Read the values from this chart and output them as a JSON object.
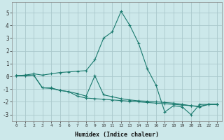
{
  "xlabel": "Humidex (Indice chaleur)",
  "bg_color": "#cce8ea",
  "grid_color": "#aac8cc",
  "line_color": "#1a7a6e",
  "xlim": [
    -0.5,
    23.5
  ],
  "ylim": [
    -3.5,
    5.8
  ],
  "xticks": [
    0,
    1,
    2,
    3,
    4,
    5,
    6,
    7,
    8,
    9,
    10,
    11,
    12,
    13,
    14,
    15,
    16,
    17,
    18,
    19,
    20,
    21,
    22,
    23
  ],
  "yticks": [
    -3,
    -2,
    -1,
    0,
    1,
    2,
    3,
    4,
    5
  ],
  "series": [
    {
      "x": [
        0,
        1,
        2,
        3,
        4,
        5,
        6,
        7,
        8,
        9,
        10,
        11,
        12,
        13,
        14,
        15,
        16,
        17,
        18,
        19,
        20,
        21,
        22,
        23
      ],
      "y": [
        0.05,
        0.1,
        0.2,
        0.1,
        0.2,
        0.3,
        0.35,
        0.4,
        0.45,
        1.3,
        3.0,
        3.5,
        5.1,
        4.0,
        2.6,
        0.6,
        -0.7,
        -2.8,
        -2.3,
        -2.4,
        -3.0,
        -2.2,
        -2.2,
        -2.2
      ]
    },
    {
      "x": [
        0,
        1,
        2,
        3,
        4,
        5,
        6,
        7,
        8,
        9,
        10,
        11,
        12,
        13,
        14,
        15,
        16,
        17,
        18,
        19,
        20,
        21,
        22,
        23
      ],
      "y": [
        0.05,
        0.05,
        0.1,
        -0.9,
        -0.9,
        -1.1,
        -1.2,
        -1.35,
        -1.55,
        0.05,
        -1.45,
        -1.6,
        -1.75,
        -1.85,
        -1.92,
        -1.95,
        -2.0,
        -2.05,
        -2.1,
        -2.2,
        -2.3,
        -2.4,
        -2.2,
        -2.2
      ]
    },
    {
      "x": [
        0,
        1,
        2,
        3,
        4,
        5,
        6,
        7,
        8,
        9,
        10,
        11,
        12,
        13,
        14,
        15,
        16,
        17,
        18,
        19,
        20,
        21,
        22,
        23
      ],
      "y": [
        0.05,
        0.05,
        0.1,
        -0.9,
        -0.95,
        -1.1,
        -1.2,
        -1.55,
        -1.7,
        -1.75,
        -1.8,
        -1.85,
        -1.9,
        -1.95,
        -2.0,
        -2.05,
        -2.1,
        -2.15,
        -2.2,
        -2.25,
        -2.3,
        -2.35,
        -2.2,
        -2.2
      ]
    }
  ]
}
